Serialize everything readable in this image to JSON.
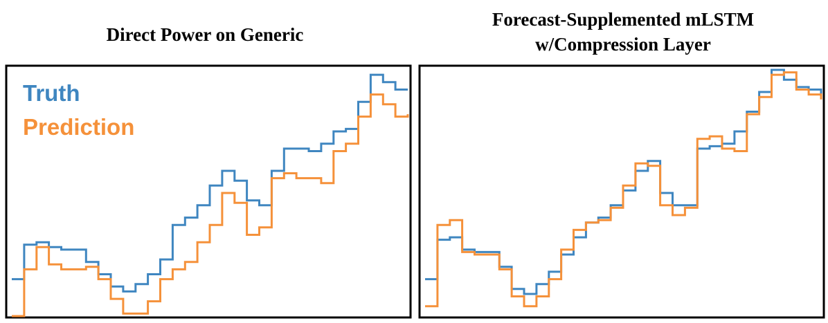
{
  "colors": {
    "truth": "#3f86c0",
    "prediction": "#f5913a",
    "frame": "#000000"
  },
  "chart_data": [
    {
      "type": "line",
      "step": true,
      "title": "Direct Power on Generic",
      "grid": false,
      "legend_placement": "top-left",
      "xlim": [
        0,
        32
      ],
      "ylim": [
        0,
        100
      ],
      "x": [
        0,
        1,
        2,
        3,
        4,
        5,
        6,
        7,
        8,
        9,
        10,
        11,
        12,
        13,
        14,
        15,
        16,
        17,
        18,
        19,
        20,
        21,
        22,
        23,
        24,
        25,
        26,
        27,
        28,
        29,
        30,
        31,
        32
      ],
      "series": [
        {
          "name": "Truth",
          "color": "#3f86c0",
          "values": [
            15,
            29,
            30,
            28,
            27,
            27,
            22,
            17,
            12,
            10,
            13,
            17,
            23,
            37,
            40,
            45,
            53,
            59,
            55,
            47,
            45,
            59,
            68,
            68,
            67,
            70,
            75,
            76,
            87,
            98,
            95,
            92,
            92
          ]
        },
        {
          "name": "Prediction",
          "color": "#f5913a",
          "values": [
            0,
            19,
            28,
            21,
            19,
            19,
            20,
            15,
            7,
            1,
            1,
            6,
            15,
            19,
            22,
            30,
            37,
            50,
            46,
            33,
            36,
            56,
            58,
            56,
            56,
            54,
            67,
            70,
            81,
            90,
            86,
            81,
            82
          ]
        }
      ]
    },
    {
      "type": "line",
      "step": true,
      "title": "Forecast-Supplemented mLSTM w/Compression Layer",
      "grid": false,
      "xlim": [
        0,
        32
      ],
      "ylim": [
        0,
        100
      ],
      "x": [
        0,
        1,
        2,
        3,
        4,
        5,
        6,
        7,
        8,
        9,
        10,
        11,
        12,
        13,
        14,
        15,
        16,
        17,
        18,
        19,
        20,
        21,
        22,
        23,
        24,
        25,
        26,
        27,
        28,
        29,
        30,
        31,
        32
      ],
      "series": [
        {
          "name": "Truth",
          "color": "#3f86c0",
          "values": [
            15,
            31,
            32,
            27,
            26,
            26,
            20,
            11,
            9,
            13,
            18,
            25,
            32,
            38,
            40,
            45,
            51,
            59,
            63,
            50,
            45,
            45,
            68,
            69,
            70,
            75,
            83,
            91,
            100,
            96,
            93,
            92,
            90
          ]
        },
        {
          "name": "Prediction",
          "color": "#f5913a",
          "values": [
            4,
            37,
            39,
            26,
            25,
            25,
            19,
            8,
            4,
            8,
            15,
            27,
            35,
            38,
            39,
            44,
            53,
            62,
            61,
            45,
            41,
            44,
            72,
            73,
            68,
            67,
            82,
            89,
            98,
            99,
            92,
            90,
            88
          ]
        }
      ]
    }
  ]
}
